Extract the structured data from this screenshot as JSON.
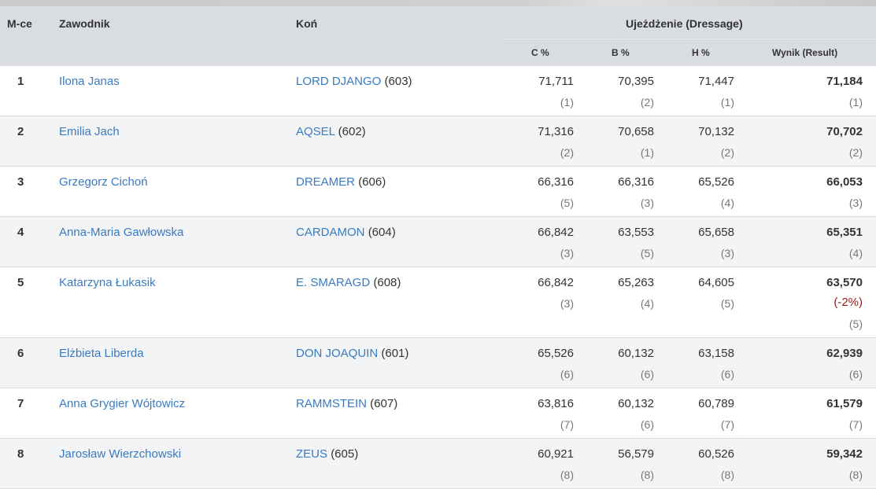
{
  "header": {
    "pos": "M-ce",
    "rider": "Zawodnik",
    "horse": "Koń",
    "group": "Ujeżdżenie (Dressage)",
    "c": "C %",
    "b": "B %",
    "h": "H %",
    "result": "Wynik (Result)"
  },
  "rows": [
    {
      "pos": "1",
      "rider": "Ilona Janas",
      "horse": "LORD DJANGO",
      "num": "(603)",
      "c": "71,711",
      "cr": "(1)",
      "b": "70,395",
      "br": "(2)",
      "h": "71,447",
      "hr": "(1)",
      "w": "71,184",
      "wr": "(1)"
    },
    {
      "pos": "2",
      "rider": "Emilia Jach",
      "horse": "AQSEL",
      "num": "(602)",
      "c": "71,316",
      "cr": "(2)",
      "b": "70,658",
      "br": "(1)",
      "h": "70,132",
      "hr": "(2)",
      "w": "70,702",
      "wr": "(2)"
    },
    {
      "pos": "3",
      "rider": "Grzegorz Cichoń",
      "horse": "DREAMER",
      "num": "(606)",
      "c": "66,316",
      "cr": "(5)",
      "b": "66,316",
      "br": "(3)",
      "h": "65,526",
      "hr": "(4)",
      "w": "66,053",
      "wr": "(3)"
    },
    {
      "pos": "4",
      "rider": "Anna-Maria Gawłowska",
      "horse": "CARDAMON",
      "num": "(604)",
      "c": "66,842",
      "cr": "(3)",
      "b": "63,553",
      "br": "(5)",
      "h": "65,658",
      "hr": "(3)",
      "w": "65,351",
      "wr": "(4)"
    },
    {
      "pos": "5",
      "rider": "Katarzyna Łukasik",
      "horse": "E. SMARAGD",
      "num": "(608)",
      "c": "66,842",
      "cr": "(3)",
      "b": "65,263",
      "br": "(4)",
      "h": "64,605",
      "hr": "(5)",
      "w": "63,570",
      "penalty": "(-2%)",
      "wr": "(5)"
    },
    {
      "pos": "6",
      "rider": "Elżbieta Liberda",
      "horse": "DON JOAQUIN",
      "num": "(601)",
      "c": "65,526",
      "cr": "(6)",
      "b": "60,132",
      "br": "(6)",
      "h": "63,158",
      "hr": "(6)",
      "w": "62,939",
      "wr": "(6)"
    },
    {
      "pos": "7",
      "rider": "Anna Grygier Wójtowicz",
      "horse": "RAMMSTEIN",
      "num": "(607)",
      "c": "63,816",
      "cr": "(7)",
      "b": "60,132",
      "br": "(6)",
      "h": "60,789",
      "hr": "(7)",
      "w": "61,579",
      "wr": "(7)"
    },
    {
      "pos": "8",
      "rider": "Jarosław Wierzchowski",
      "horse": "ZEUS",
      "num": "(605)",
      "c": "60,921",
      "cr": "(8)",
      "b": "56,579",
      "br": "(8)",
      "h": "60,526",
      "hr": "(8)",
      "w": "59,342",
      "wr": "(8)"
    }
  ]
}
